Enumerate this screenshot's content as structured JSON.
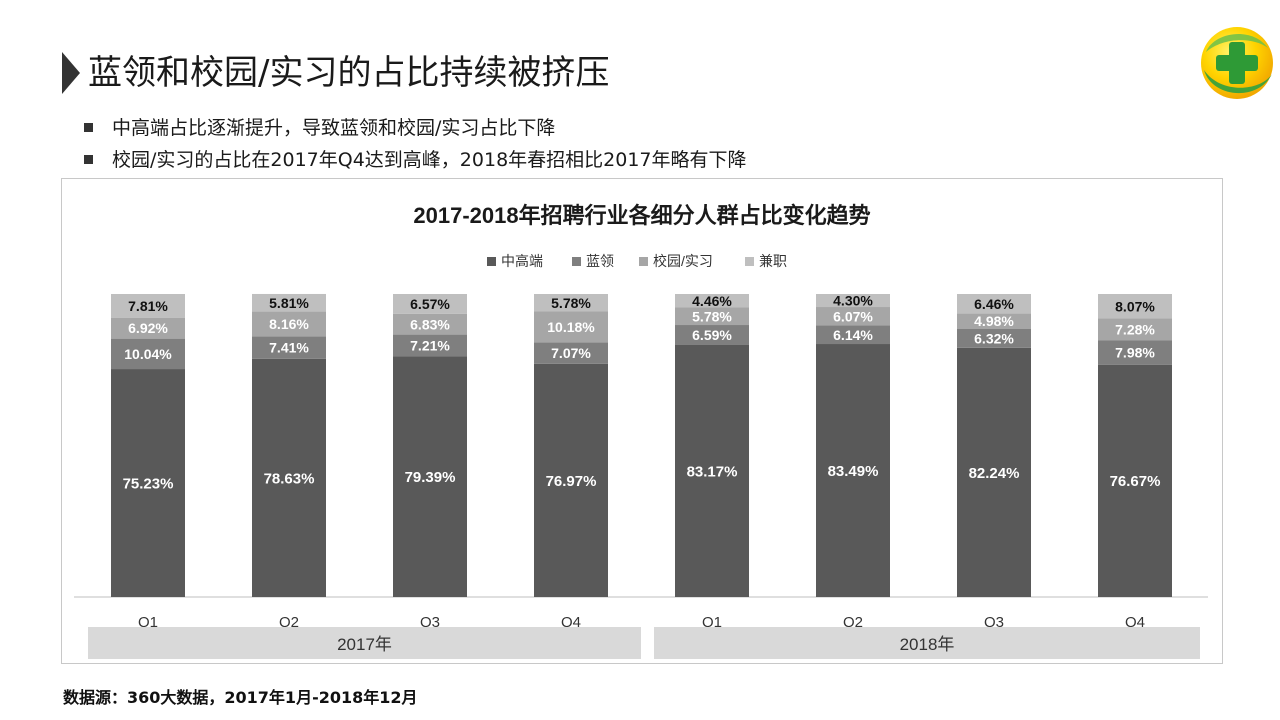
{
  "page": {
    "title": "蓝领和校园/实习的占比持续被挤压",
    "bullets": [
      "中高端占比逐渐提升，导致蓝领和校园/实习占比下降",
      "校园/实习的占比在2017年Q4达到高峰，2018年春招相比2017年略有下降"
    ],
    "source": "数据源：360大数据，2017年1月-2018年12月",
    "logo_icon": "360-plus-logo-icon"
  },
  "chart_data": {
    "type": "bar",
    "stacked": true,
    "title": "2017-2018年招聘行业各细分人群占比变化趋势",
    "categories": [
      "Q1",
      "Q2",
      "Q3",
      "Q4",
      "Q1",
      "Q2",
      "Q3",
      "Q4"
    ],
    "groups": [
      {
        "label": "2017年",
        "categories": [
          0,
          1,
          2,
          3
        ]
      },
      {
        "label": "2018年",
        "categories": [
          4,
          5,
          6,
          7
        ]
      }
    ],
    "series": [
      {
        "name": "中高端",
        "color": "#595959",
        "values": [
          75.23,
          78.63,
          79.39,
          76.97,
          83.17,
          83.49,
          82.24,
          76.67
        ],
        "labels": [
          "75.23%",
          "78.63%",
          "79.39%",
          "76.97%",
          "83.17%",
          "83.49%",
          "82.24%",
          "76.67%"
        ]
      },
      {
        "name": "蓝领",
        "color": "#7f7f7f",
        "values": [
          10.04,
          7.41,
          7.21,
          7.07,
          6.59,
          6.14,
          6.32,
          7.98
        ],
        "labels": [
          "10.04%",
          "7.41%",
          "7.21%",
          "7.07%",
          "6.59%",
          "6.14%",
          "6.32%",
          "7.98%"
        ]
      },
      {
        "name": "校园/实习",
        "color": "#a6a6a6",
        "values": [
          6.92,
          8.16,
          6.83,
          10.18,
          5.78,
          6.07,
          4.98,
          7.28
        ],
        "labels": [
          "6.92%",
          "8.16%",
          "6.83%",
          "10.18%",
          "5.78%",
          "6.07%",
          "4.98%",
          "7.28%"
        ]
      },
      {
        "name": "兼职",
        "color": "#bfbfbf",
        "values": [
          7.81,
          5.81,
          6.57,
          5.78,
          4.46,
          4.3,
          6.46,
          8.07
        ],
        "labels": [
          "7.81%",
          "5.81%",
          "6.57%",
          "5.78%",
          "4.46%",
          "4.30%",
          "6.46%",
          "8.07%"
        ]
      }
    ],
    "ylim": [
      0,
      100
    ],
    "grid": false,
    "legend_position": "top-center"
  }
}
